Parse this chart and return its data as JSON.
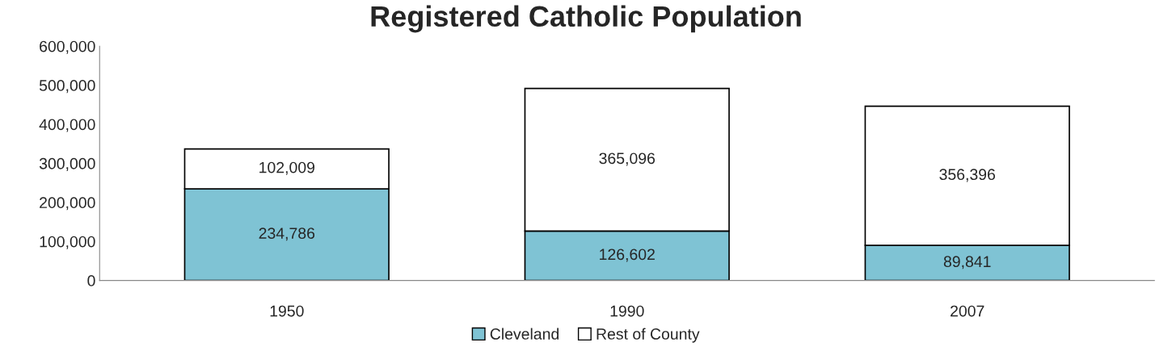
{
  "chart_data": {
    "type": "bar",
    "title": "Registered Catholic Population",
    "categories": [
      "1950",
      "1990",
      "2007"
    ],
    "stacked": true,
    "legend": "bottom",
    "grid": false,
    "series": [
      {
        "name": "Cleveland",
        "color": "#7fc3d4",
        "values": [
          234786,
          126602,
          89841
        ],
        "value_labels": [
          "234,786",
          "126,602",
          "89,841"
        ]
      },
      {
        "name": "Rest of County",
        "color": "#ffffff",
        "values": [
          102009,
          365096,
          356396
        ],
        "value_labels": [
          "102,009",
          "365,096",
          "356,396"
        ]
      }
    ],
    "ylim": [
      0,
      600000
    ],
    "yticks": [
      0,
      {
        "value": 100000,
        "label": "100,000"
      },
      {
        "value": 200000,
        "label": "200,000"
      },
      {
        "value": 300000,
        "label": "300,000"
      },
      {
        "value": 400000,
        "label": "400,000"
      },
      {
        "value": 500000,
        "label": "500,000"
      },
      {
        "value": 600000,
        "label": "600,000"
      }
    ]
  }
}
